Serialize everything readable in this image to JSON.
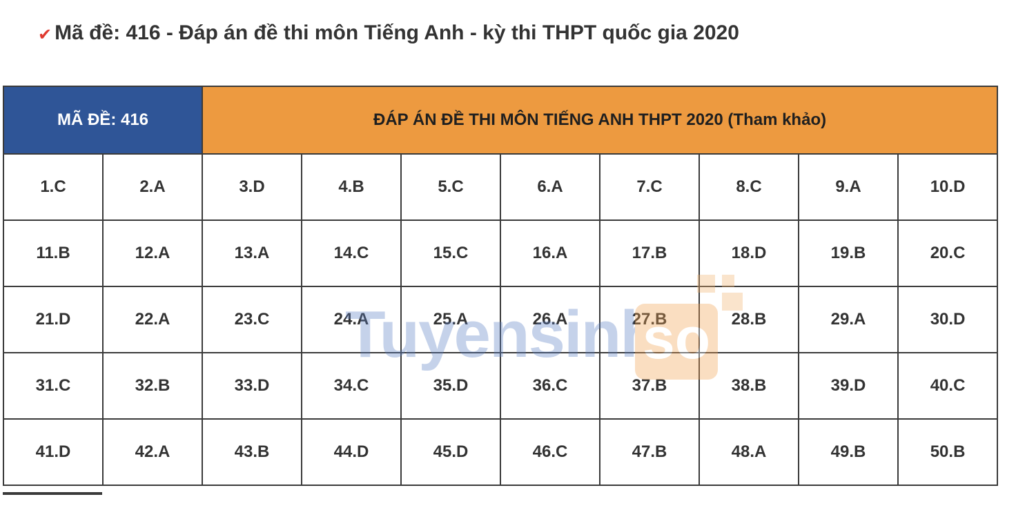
{
  "heading": {
    "check_icon": "✔",
    "text": "Mã đề: 416 - Đáp án đề thi môn Tiếng Anh - kỳ thi THPT quốc gia 2020"
  },
  "table": {
    "code_label": "MÃ ĐỀ: 416",
    "title": "ĐÁP ÁN ĐỀ THI MÔN TIẾNG ANH THPT 2020 (Tham khảo)",
    "rows": [
      [
        "1.C",
        "2.A",
        "3.D",
        "4.B",
        "5.C",
        "6.A",
        "7.C",
        "8.C",
        "9.A",
        "10.D"
      ],
      [
        "11.B",
        "12.A",
        "13.A",
        "14.C",
        "15.C",
        "16.A",
        "17.B",
        "18.D",
        "19.B",
        "20.C"
      ],
      [
        "21.D",
        "22.A",
        "23.C",
        "24.A",
        "25.A",
        "26.A",
        "27.B",
        "28.B",
        "29.A",
        "30.D"
      ],
      [
        "31.C",
        "32.B",
        "33.D",
        "34.C",
        "35.D",
        "36.C",
        "37.B",
        "38.B",
        "39.D",
        "40.C"
      ],
      [
        "41.D",
        "42.A",
        "43.B",
        "44.D",
        "45.D",
        "46.C",
        "47.B",
        "48.A",
        "49.B",
        "50.B"
      ]
    ]
  },
  "watermark": {
    "text": "Tuyensinh",
    "badge": "so"
  },
  "colors": {
    "code_bg": "#2f5597",
    "title_bg": "#ed9a40",
    "check": "#e03a2f"
  }
}
